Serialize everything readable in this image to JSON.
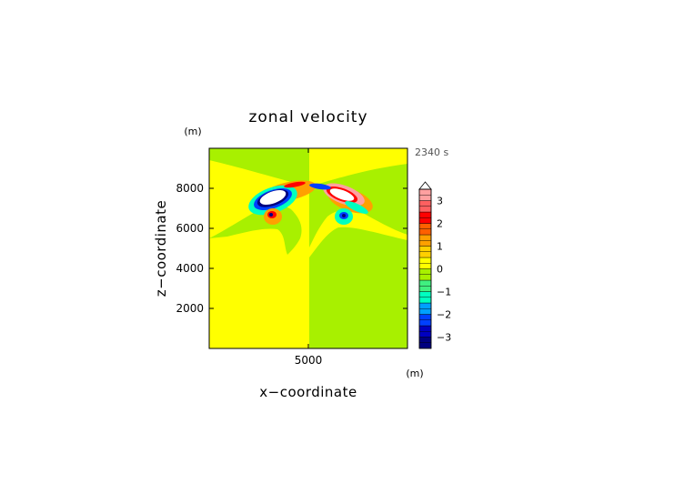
{
  "chart_data": {
    "type": "heatmap",
    "title": "zonal velocity",
    "xlabel": "x−coordinate",
    "ylabel": "z−coordinate",
    "x_unit": "(m)",
    "y_unit": "(m)",
    "time_label": "2340 s",
    "xlim": [
      0,
      10000
    ],
    "ylim": [
      0,
      10000
    ],
    "x_ticks": [
      5000
    ],
    "x_tick_labels": [
      "5000"
    ],
    "y_ticks": [
      2000,
      4000,
      6000,
      8000
    ],
    "y_tick_labels": [
      "2000",
      "4000",
      "6000",
      "8000"
    ],
    "colorbar": {
      "min": -3.5,
      "max": 3.5,
      "step": 0.25,
      "ticks": [
        3,
        2,
        1,
        0,
        -1,
        -2,
        -3
      ],
      "tick_labels": [
        "3",
        "2",
        "1",
        "0",
        "−1",
        "−2",
        "−3"
      ],
      "extend": "max"
    },
    "colors": {
      "positive_light": "#ffff00",
      "negative_light": "#a8f000",
      "orange": "#ffa000",
      "red": "#ff0000",
      "pink": "#ffa0a0",
      "cyan": "#00ffc0",
      "blue": "#0040ff",
      "navy": "#000080"
    }
  }
}
